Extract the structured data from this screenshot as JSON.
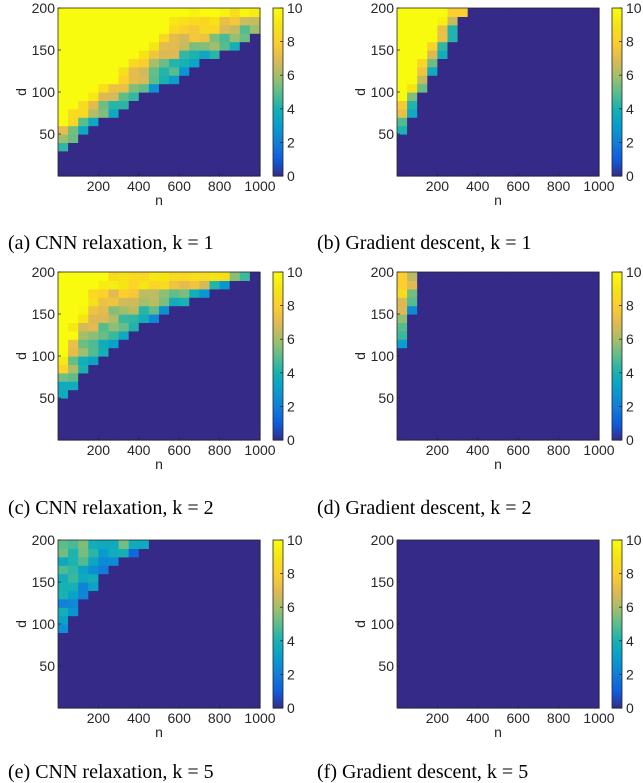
{
  "figure": {
    "common": {
      "xlabel": "n",
      "ylabel": "d",
      "xticks": [
        200,
        400,
        600,
        800,
        1000
      ],
      "yticks": [
        50,
        100,
        150,
        200
      ],
      "xlim": [
        0,
        1000
      ],
      "ylim": [
        0,
        200
      ],
      "colorbar": {
        "ticks": [
          0,
          2,
          4,
          6,
          8,
          10
        ],
        "range": [
          0,
          10
        ],
        "colormap": "parula"
      }
    },
    "captions": [
      "(a) CNN relaxation, k = 1",
      "(b) Gradient descent, k = 1",
      "(c) CNN relaxation, k = 2",
      "(d) Gradient descent, k = 2",
      "(e) CNN relaxation, k = 5",
      "(f) Gradient descent, k = 5"
    ]
  },
  "chart_data": [
    {
      "type": "heatmap",
      "panel": "a",
      "title": "(a) CNN relaxation, k = 1",
      "xlabel": "n",
      "ylabel": "d",
      "x_range": [
        0,
        1000
      ],
      "y_range": [
        0,
        200
      ],
      "grid": "20x20",
      "value_range": [
        0,
        10
      ],
      "colormap": "parula",
      "transition": [
        [
          0,
          20
        ],
        [
          100,
          45
        ],
        [
          200,
          62
        ],
        [
          300,
          76
        ],
        [
          400,
          92
        ],
        [
          500,
          106
        ],
        [
          600,
          118
        ],
        [
          700,
          132
        ],
        [
          800,
          145
        ],
        [
          900,
          157
        ],
        [
          1000,
          168
        ]
      ],
      "saturation": [
        [
          0,
          60
        ],
        [
          100,
          85
        ],
        [
          200,
          105
        ],
        [
          300,
          125
        ],
        [
          400,
          145
        ],
        [
          500,
          170
        ],
        [
          600,
          200
        ],
        [
          1000,
          200
        ]
      ],
      "peak_value": 10,
      "boundary_value": 3.5
    },
    {
      "type": "heatmap",
      "panel": "b",
      "title": "(b) Gradient descent, k = 1",
      "xlabel": "n",
      "ylabel": "d",
      "x_range": [
        0,
        1000
      ],
      "y_range": [
        0,
        200
      ],
      "grid": "20x20",
      "value_range": [
        0,
        10
      ],
      "colormap": "parula",
      "transition": [
        [
          0,
          35
        ],
        [
          100,
          85
        ],
        [
          200,
          130
        ],
        [
          300,
          175
        ],
        [
          350,
          200
        ],
        [
          1000,
          200
        ]
      ],
      "saturation": [
        [
          0,
          80
        ],
        [
          100,
          130
        ],
        [
          200,
          175
        ],
        [
          250,
          200
        ],
        [
          1000,
          200
        ]
      ],
      "peak_value": 10,
      "boundary_value": 3
    },
    {
      "type": "heatmap",
      "panel": "c",
      "title": "(c) CNN relaxation, k = 2",
      "xlabel": "n",
      "ylabel": "d",
      "x_range": [
        0,
        1000
      ],
      "y_range": [
        0,
        200
      ],
      "grid": "20x20",
      "value_range": [
        0,
        10
      ],
      "colormap": "parula",
      "transition": [
        [
          0,
          45
        ],
        [
          100,
          70
        ],
        [
          200,
          92
        ],
        [
          300,
          112
        ],
        [
          400,
          132
        ],
        [
          500,
          148
        ],
        [
          600,
          160
        ],
        [
          700,
          172
        ],
        [
          800,
          182
        ],
        [
          900,
          192
        ],
        [
          1000,
          200
        ]
      ],
      "saturation": [
        [
          0,
          95
        ],
        [
          100,
          150
        ],
        [
          200,
          200
        ],
        [
          1000,
          200
        ]
      ],
      "peak_value": 10,
      "boundary_value": 3
    },
    {
      "type": "heatmap",
      "panel": "d",
      "title": "(d) Gradient descent, k = 2",
      "xlabel": "n",
      "ylabel": "d",
      "x_range": [
        0,
        1000
      ],
      "y_range": [
        0,
        200
      ],
      "grid": "20x20",
      "value_range": [
        0,
        10
      ],
      "colormap": "parula",
      "transition": [
        [
          0,
          92
        ],
        [
          50,
          125
        ],
        [
          100,
          185
        ],
        [
          125,
          200
        ],
        [
          1000,
          200
        ]
      ],
      "saturation": [
        [
          0,
          160
        ],
        [
          50,
          200
        ],
        [
          1000,
          200
        ]
      ],
      "peak_value": 8,
      "boundary_value": 3
    },
    {
      "type": "heatmap",
      "panel": "e",
      "title": "(e) CNN relaxation, k = 5",
      "xlabel": "n",
      "ylabel": "d",
      "x_range": [
        0,
        1000
      ],
      "y_range": [
        0,
        200
      ],
      "grid": "20x20",
      "value_range": [
        0,
        10
      ],
      "colormap": "parula",
      "transition": [
        [
          0,
          80
        ],
        [
          100,
          120
        ],
        [
          200,
          150
        ],
        [
          300,
          172
        ],
        [
          400,
          188
        ],
        [
          500,
          198
        ],
        [
          600,
          200
        ],
        [
          1000,
          200
        ]
      ],
      "saturation": [
        [
          0,
          190
        ],
        [
          50,
          200
        ],
        [
          1000,
          200
        ]
      ],
      "peak_value": 5,
      "boundary_value": 2.2
    },
    {
      "type": "heatmap",
      "panel": "f",
      "title": "(f) Gradient descent, k = 5",
      "xlabel": "n",
      "ylabel": "d",
      "x_range": [
        0,
        1000
      ],
      "y_range": [
        0,
        200
      ],
      "grid": "20x20",
      "value_range": [
        0,
        10
      ],
      "colormap": "parula",
      "transition": [],
      "saturation": [],
      "peak_value": 0,
      "boundary_value": 0
    }
  ]
}
